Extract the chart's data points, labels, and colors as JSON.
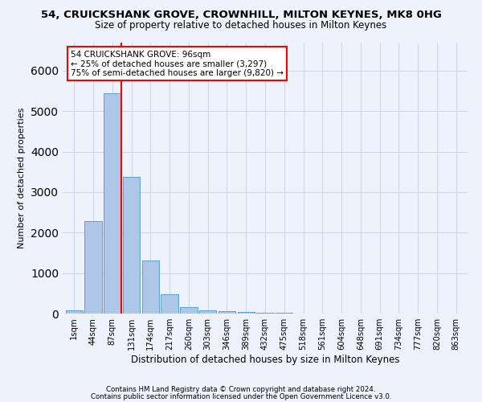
{
  "title": "54, CRUICKSHANK GROVE, CROWNHILL, MILTON KEYNES, MK8 0HG",
  "subtitle": "Size of property relative to detached houses in Milton Keynes",
  "xlabel": "Distribution of detached houses by size in Milton Keynes",
  "ylabel": "Number of detached properties",
  "footnote1": "Contains HM Land Registry data © Crown copyright and database right 2024.",
  "footnote2": "Contains public sector information licensed under the Open Government Licence v3.0.",
  "bar_labels": [
    "1sqm",
    "44sqm",
    "87sqm",
    "131sqm",
    "174sqm",
    "217sqm",
    "260sqm",
    "303sqm",
    "346sqm",
    "389sqm",
    "432sqm",
    "475sqm",
    "518sqm",
    "561sqm",
    "604sqm",
    "648sqm",
    "691sqm",
    "734sqm",
    "777sqm",
    "820sqm",
    "863sqm"
  ],
  "bar_values": [
    75,
    2280,
    5440,
    3380,
    1310,
    480,
    165,
    85,
    55,
    30,
    15,
    10,
    5,
    5,
    3,
    2,
    1,
    1,
    0,
    0,
    0
  ],
  "bar_color": "#aec6e8",
  "bar_edge_color": "#5a9fd4",
  "grid_color": "#d0d8e8",
  "annotation_line1": "54 CRUICKSHANK GROVE: 96sqm",
  "annotation_line2": "← 25% of detached houses are smaller (3,297)",
  "annotation_line3": "75% of semi-detached houses are larger (9,820) →",
  "vline_x_index": 2,
  "vline_color": "red",
  "ylim": [
    0,
    6700
  ],
  "background_color": "#eef2fa"
}
